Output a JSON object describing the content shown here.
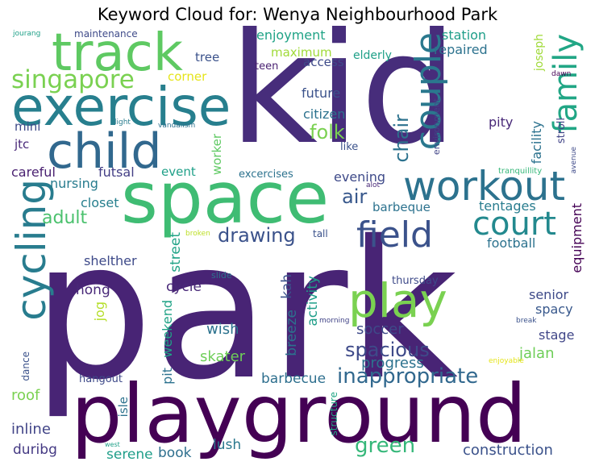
{
  "title": "Keyword Cloud for: Wenya Neighbourhood Park",
  "words": [
    {
      "t": "park",
      "c": "#482475"
    },
    {
      "t": "playground",
      "c": "#440154"
    },
    {
      "t": "kid",
      "c": "#472d7b"
    },
    {
      "t": "space",
      "c": "#3fbc73"
    },
    {
      "t": "exercise",
      "c": "#277f8e"
    },
    {
      "t": "track",
      "c": "#5ec962"
    },
    {
      "t": "child",
      "c": "#31688e"
    },
    {
      "t": "workout",
      "c": "#2c728e"
    },
    {
      "t": "cycling",
      "c": "#287c8e"
    },
    {
      "t": "court",
      "c": "#23898e"
    },
    {
      "t": "field",
      "c": "#3b528b"
    },
    {
      "t": "play",
      "c": "#7ad151"
    },
    {
      "t": "couple",
      "c": "#2a788e"
    },
    {
      "t": "family",
      "c": "#21a685"
    },
    {
      "t": "singapore",
      "c": "#7ad151"
    },
    {
      "t": "spacious",
      "c": "#3e4a89"
    },
    {
      "t": "inappropriate",
      "c": "#31688e"
    },
    {
      "t": "green",
      "c": "#35b779"
    },
    {
      "t": "drawing",
      "c": "#3b528b"
    },
    {
      "t": "folk",
      "c": "#7ad151"
    },
    {
      "t": "chair",
      "c": "#2c728e"
    },
    {
      "t": "air",
      "c": "#38588c"
    },
    {
      "t": "adult",
      "c": "#4ac16d"
    },
    {
      "t": "progress",
      "c": "#2c728e"
    },
    {
      "t": "jalan",
      "c": "#6ece58"
    },
    {
      "t": "construction",
      "c": "#3b528b"
    },
    {
      "t": "soccer",
      "c": "#3e4a89"
    },
    {
      "t": "skater",
      "c": "#6ece58"
    },
    {
      "t": "barbecue",
      "c": "#2e6f8e"
    },
    {
      "t": "roof",
      "c": "#7ad151"
    },
    {
      "t": "inline",
      "c": "#414487"
    },
    {
      "t": "duribg",
      "c": "#443983"
    },
    {
      "t": "serene",
      "c": "#1f9e89"
    },
    {
      "t": "book",
      "c": "#2e6f8e"
    },
    {
      "t": "lush",
      "c": "#2a788e"
    },
    {
      "t": "wish",
      "c": "#2c728e"
    },
    {
      "t": "activity",
      "c": "#1f9e89"
    },
    {
      "t": "breeze",
      "c": "#2c728e"
    },
    {
      "t": "kah",
      "c": "#3b528b"
    },
    {
      "t": "street",
      "c": "#20a386"
    },
    {
      "t": "cycle",
      "c": "#482878"
    },
    {
      "t": "hong",
      "c": "#482878"
    },
    {
      "t": "pit",
      "c": "#2c728e"
    },
    {
      "t": "weekend",
      "c": "#20a386"
    },
    {
      "t": "jog",
      "c": "#b5de2b"
    },
    {
      "t": "shelther",
      "c": "#3e4a89"
    },
    {
      "t": "closet",
      "c": "#277f8e"
    },
    {
      "t": "nursing",
      "c": "#287c8e"
    },
    {
      "t": "careful",
      "c": "#481f70"
    },
    {
      "t": "futsal",
      "c": "#433e85"
    },
    {
      "t": "event",
      "c": "#1fa088"
    },
    {
      "t": "worker",
      "c": "#5ec962"
    },
    {
      "t": "mini",
      "c": "#3e4a89"
    },
    {
      "t": "jtc",
      "c": "#482878"
    },
    {
      "t": "tree",
      "c": "#3b528b"
    },
    {
      "t": "corner",
      "c": "#e5e419"
    },
    {
      "t": "maximum",
      "c": "#a0da39"
    },
    {
      "t": "enjoyment",
      "c": "#20a386"
    },
    {
      "t": "access",
      "c": "#3e4a89"
    },
    {
      "t": "teen",
      "c": "#481f70"
    },
    {
      "t": "elderly",
      "c": "#1fa088"
    },
    {
      "t": "station",
      "c": "#1f9e89"
    },
    {
      "t": "repaired",
      "c": "#2c728e"
    },
    {
      "t": "future",
      "c": "#3b528b"
    },
    {
      "t": "citizen",
      "c": "#2c728e"
    },
    {
      "t": "evening",
      "c": "#3e4a89"
    },
    {
      "t": "barbeque",
      "c": "#2c728e"
    },
    {
      "t": "tentages",
      "c": "#287c8e"
    },
    {
      "t": "football",
      "c": "#2c728e"
    },
    {
      "t": "equipment",
      "c": "#440154"
    },
    {
      "t": "senior",
      "c": "#3e4a89"
    },
    {
      "t": "spacy",
      "c": "#38588c"
    },
    {
      "t": "stage",
      "c": "#404688"
    },
    {
      "t": "thursday",
      "c": "#3e4a89"
    },
    {
      "t": "pity",
      "c": "#482878"
    },
    {
      "t": "like",
      "c": "#3b528b"
    },
    {
      "t": "facility",
      "c": "#2c728e"
    },
    {
      "t": "joseph",
      "c": "#a0da39"
    },
    {
      "t": "stroll",
      "c": "#414487"
    },
    {
      "t": "environment",
      "c": "#414487"
    },
    {
      "t": "tranquillity",
      "c": "#35b779"
    },
    {
      "t": "avenue",
      "c": "#3e4a89"
    },
    {
      "t": "dawn",
      "c": "#440154"
    },
    {
      "t": "excercises",
      "c": "#2c728e"
    },
    {
      "t": "alot",
      "c": "#482878"
    },
    {
      "t": "tall",
      "c": "#3b528b"
    },
    {
      "t": "slide",
      "c": "#2c728e"
    },
    {
      "t": "broken",
      "c": "#bddf26"
    },
    {
      "t": "morning",
      "c": "#414487"
    },
    {
      "t": "break",
      "c": "#3b528b"
    },
    {
      "t": "enjoyable",
      "c": "#e5e419"
    },
    {
      "t": "structure",
      "c": "#21a685"
    },
    {
      "t": "isle",
      "c": "#2c728e"
    },
    {
      "t": "hangout",
      "c": "#3e4a89"
    },
    {
      "t": "dance",
      "c": "#3b528b"
    },
    {
      "t": "west",
      "c": "#1fa088"
    },
    {
      "t": "jourang",
      "c": "#1fa088"
    },
    {
      "t": "maintenance",
      "c": "#3e4a89"
    },
    {
      "t": "light",
      "c": "#287c8e"
    },
    {
      "t": "vandalism",
      "c": "#2c728e"
    }
  ]
}
